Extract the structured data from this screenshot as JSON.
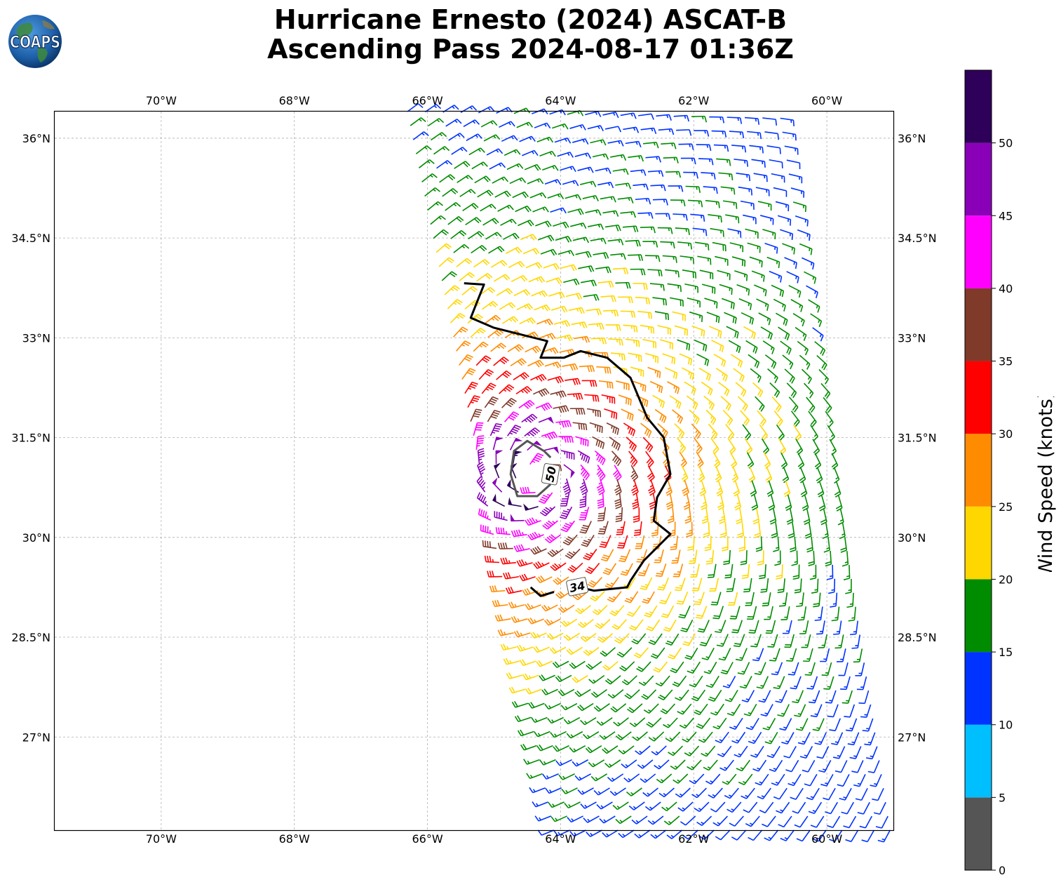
{
  "title": {
    "line1": "Hurricane Ernesto (2024) ASCAT-B",
    "line2": "Ascending Pass 2024-08-17 01:36Z"
  },
  "logo": {
    "text": "COAPS",
    "icon": "earth-globe-icon"
  },
  "map": {
    "lon_range": [
      -71.6,
      -59.0
    ],
    "lat_range": [
      25.6,
      36.4
    ],
    "lon_ticks": [
      {
        "value": -70,
        "label": "70°W"
      },
      {
        "value": -68,
        "label": "68°W"
      },
      {
        "value": -66,
        "label": "66°W"
      },
      {
        "value": -64,
        "label": "64°W"
      },
      {
        "value": -62,
        "label": "62°W"
      },
      {
        "value": -60,
        "label": "60°W"
      }
    ],
    "lat_ticks": [
      {
        "value": 36,
        "label": "36°N"
      },
      {
        "value": 34.5,
        "label": "34.5°N"
      },
      {
        "value": 33,
        "label": "33°N"
      },
      {
        "value": 31.5,
        "label": "31.5°N"
      },
      {
        "value": 30,
        "label": "30°N"
      },
      {
        "value": 28.5,
        "label": "28.5°N"
      },
      {
        "value": 27,
        "label": "27°N"
      }
    ],
    "grid": true,
    "storm_center": {
      "lon": -64.3,
      "lat": 30.9
    },
    "contours": [
      {
        "label": "34",
        "color": "#000000",
        "label_pos": {
          "lon": -63.75,
          "lat": 29.26
        },
        "path": [
          [
            -65.45,
            33.82
          ],
          [
            -65.15,
            33.8
          ],
          [
            -65.25,
            33.55
          ],
          [
            -65.35,
            33.3
          ],
          [
            -65.0,
            33.15
          ],
          [
            -64.6,
            33.05
          ],
          [
            -64.2,
            32.95
          ],
          [
            -64.3,
            32.7
          ],
          [
            -63.95,
            32.7
          ],
          [
            -63.7,
            32.8
          ],
          [
            -63.3,
            32.7
          ],
          [
            -62.95,
            32.4
          ],
          [
            -62.7,
            31.8
          ],
          [
            -62.45,
            31.5
          ],
          [
            -62.35,
            30.95
          ],
          [
            -62.55,
            30.6
          ],
          [
            -62.6,
            30.25
          ],
          [
            -62.35,
            30.05
          ],
          [
            -62.75,
            29.65
          ],
          [
            -62.95,
            29.35
          ],
          [
            -63.0,
            29.25
          ],
          [
            -63.5,
            29.2
          ],
          [
            -63.75,
            29.26
          ]
        ],
        "path2": [
          [
            -64.1,
            29.18
          ],
          [
            -64.3,
            29.12
          ],
          [
            -64.45,
            29.25
          ]
        ]
      },
      {
        "label": "50",
        "color": "#555555",
        "label_pos": {
          "lon": -64.15,
          "lat": 30.95
        },
        "path": [
          [
            -64.15,
            30.8
          ],
          [
            -64.35,
            30.62
          ],
          [
            -64.65,
            30.62
          ],
          [
            -64.75,
            30.95
          ],
          [
            -64.7,
            31.3
          ],
          [
            -64.5,
            31.45
          ],
          [
            -64.25,
            31.3
          ],
          [
            -64.15,
            31.2
          ]
        ]
      }
    ],
    "swath": {
      "top_left": {
        "lon": -66.3,
        "lat": 36.4
      },
      "top_right": {
        "lon": -60.7,
        "lat": 36.3
      },
      "bottom_left": {
        "lon": -64.1,
        "lat": 25.6
      },
      "bottom_right": {
        "lon": -59.05,
        "lat": 25.6
      }
    }
  },
  "colorbar": {
    "label": "Wind Speed (knots)",
    "bins": [
      {
        "min": 0,
        "max": 5,
        "color": "#555555"
      },
      {
        "min": 5,
        "max": 10,
        "color": "#00bfff"
      },
      {
        "min": 10,
        "max": 15,
        "color": "#0033ff"
      },
      {
        "min": 15,
        "max": 20,
        "color": "#008c00"
      },
      {
        "min": 20,
        "max": 25,
        "color": "#ffd700"
      },
      {
        "min": 25,
        "max": 30,
        "color": "#ff8c00"
      },
      {
        "min": 30,
        "max": 35,
        "color": "#ff0000"
      },
      {
        "min": 35,
        "max": 40,
        "color": "#7f3a2a"
      },
      {
        "min": 40,
        "max": 45,
        "color": "#ff00ff"
      },
      {
        "min": 45,
        "max": 50,
        "color": "#8a00b8"
      },
      {
        "min": 50,
        "max": 55,
        "color": "#2e0059"
      }
    ],
    "tick_labels": [
      "0",
      "5",
      "10",
      "15",
      "20",
      "25",
      "30",
      "35",
      "40",
      "45",
      "50"
    ]
  }
}
